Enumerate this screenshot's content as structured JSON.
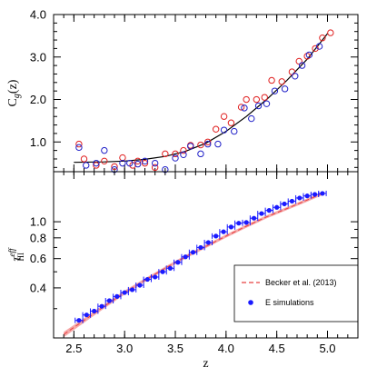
{
  "chart_data": [
    {
      "panel": "top",
      "type": "scatter",
      "ylabel": "C_g(z)",
      "xlim": [
        2.3,
        5.3
      ],
      "ylim": [
        0.3,
        4.0
      ],
      "yticks": [
        "1.0",
        "2.0",
        "3.0",
        "4.0"
      ],
      "series": [
        {
          "marker": "open-circle",
          "color": "#e02020",
          "x": [
            2.55,
            2.6,
            2.72,
            2.8,
            2.9,
            2.98,
            3.08,
            3.13,
            3.2,
            3.3,
            3.4,
            3.5,
            3.58,
            3.65,
            3.75,
            3.82,
            3.9,
            3.98,
            4.05,
            4.15,
            4.2,
            4.3,
            4.38,
            4.45,
            4.55,
            4.65,
            4.72,
            4.8,
            4.88,
            4.95,
            5.03
          ],
          "y": [
            0.95,
            0.6,
            0.45,
            0.55,
            0.42,
            0.63,
            0.45,
            0.55,
            0.5,
            0.4,
            0.72,
            0.72,
            0.8,
            0.92,
            0.93,
            1.0,
            1.3,
            1.6,
            1.45,
            1.82,
            2.0,
            2.0,
            2.05,
            2.45,
            2.42,
            2.65,
            2.9,
            3.02,
            3.2,
            3.45,
            3.57
          ]
        },
        {
          "marker": "open-circle",
          "color": "#2020c8",
          "x": [
            2.55,
            2.62,
            2.72,
            2.8,
            2.9,
            2.98,
            3.05,
            3.13,
            3.2,
            3.3,
            3.4,
            3.5,
            3.58,
            3.65,
            3.75,
            3.82,
            3.92,
            3.98,
            4.08,
            4.18,
            4.25,
            4.32,
            4.4,
            4.48,
            4.58,
            4.68,
            4.75,
            4.82,
            4.92
          ],
          "y": [
            0.87,
            0.45,
            0.5,
            0.8,
            0.35,
            0.5,
            0.5,
            0.48,
            0.55,
            0.5,
            0.35,
            0.62,
            0.7,
            0.9,
            0.72,
            0.95,
            0.95,
            1.28,
            1.25,
            1.8,
            1.55,
            1.85,
            1.9,
            2.2,
            2.25,
            2.55,
            2.8,
            3.05,
            3.25
          ]
        }
      ],
      "fit_curve": {
        "color": "#000000",
        "x": [
          2.5,
          2.8,
          3.0,
          3.2,
          3.4,
          3.6,
          3.8,
          4.0,
          4.2,
          4.4,
          4.6,
          4.8,
          5.0
        ],
        "y": [
          0.52,
          0.53,
          0.55,
          0.59,
          0.66,
          0.78,
          0.97,
          1.25,
          1.6,
          2.0,
          2.45,
          2.95,
          3.55
        ]
      }
    },
    {
      "panel": "bottom",
      "type": "scatter",
      "xlabel": "z",
      "ylabel": "τ_HI^eff",
      "xscale": "linear",
      "yscale": "log",
      "xlim": [
        2.3,
        5.3
      ],
      "ylim": [
        0.2,
        2.0
      ],
      "xticks": [
        "2.5",
        "3.0",
        "3.5",
        "4.0",
        "4.5",
        "5.0"
      ],
      "yticks": [
        "0.4",
        "0.6",
        "0.8",
        "1.0"
      ],
      "legend_position": "bottom-right",
      "series": [
        {
          "name": "Becker et al. (2013)",
          "type": "band",
          "color": "#e84040",
          "x": [
            2.4,
            2.6,
            2.8,
            3.0,
            3.2,
            3.4,
            3.6,
            3.8,
            4.0,
            4.2,
            4.4,
            4.6,
            4.8,
            4.95
          ],
          "y": [
            0.21,
            0.255,
            0.31,
            0.375,
            0.445,
            0.525,
            0.615,
            0.71,
            0.82,
            0.94,
            1.07,
            1.2,
            1.35,
            1.48
          ],
          "y_err": [
            0.008,
            0.008,
            0.009,
            0.01,
            0.011,
            0.012,
            0.014,
            0.016,
            0.018,
            0.02,
            0.023,
            0.026,
            0.03,
            0.033
          ]
        },
        {
          "name": "E simulations",
          "marker": "filled-circle",
          "color": "#1a1aff",
          "x": [
            2.55,
            2.625,
            2.7,
            2.775,
            2.85,
            2.925,
            3.0,
            3.075,
            3.15,
            3.225,
            3.3,
            3.375,
            3.45,
            3.525,
            3.6,
            3.675,
            3.75,
            3.825,
            3.9,
            3.975,
            4.05,
            4.125,
            4.2,
            4.275,
            4.35,
            4.425,
            4.5,
            4.575,
            4.65,
            4.725,
            4.8,
            4.875,
            4.95
          ],
          "y": [
            0.255,
            0.275,
            0.29,
            0.31,
            0.335,
            0.355,
            0.375,
            0.39,
            0.415,
            0.45,
            0.465,
            0.5,
            0.525,
            0.57,
            0.615,
            0.655,
            0.7,
            0.75,
            0.82,
            0.87,
            0.93,
            0.98,
            0.99,
            1.05,
            1.12,
            1.17,
            1.22,
            1.28,
            1.33,
            1.39,
            1.43,
            1.46,
            1.48
          ],
          "x_err": 0.0375
        }
      ]
    }
  ]
}
